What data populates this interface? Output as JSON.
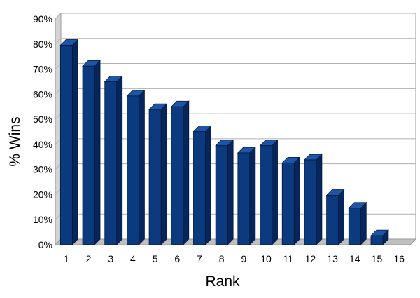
{
  "chart_data": {
    "type": "bar",
    "style": "3d-columns",
    "categories": [
      "1",
      "2",
      "3",
      "4",
      "5",
      "6",
      "7",
      "8",
      "9",
      "10",
      "11",
      "12",
      "13",
      "14",
      "15",
      "16"
    ],
    "values": [
      79.5,
      71.2,
      65.0,
      59.3,
      53.9,
      55.0,
      45.1,
      39.5,
      36.6,
      39.5,
      32.6,
      33.8,
      19.7,
      14.6,
      3.6,
      0
    ],
    "value_unit": "%",
    "title": "",
    "xlabel": "Rank",
    "ylabel": "% Wins",
    "ylim": [
      0,
      90
    ],
    "yticks": [
      "0%",
      "10%",
      "20%",
      "30%",
      "40%",
      "50%",
      "60%",
      "70%",
      "80%",
      "90%"
    ],
    "grid": true,
    "legend": "none",
    "colors": {
      "bar_front": "#0b3a7e",
      "bar_side": "#06255a",
      "bar_top": "#1e55a6",
      "grid": "#b0b0b0",
      "back_wall": "#ffffff",
      "floor": "#c0c0c0"
    }
  }
}
